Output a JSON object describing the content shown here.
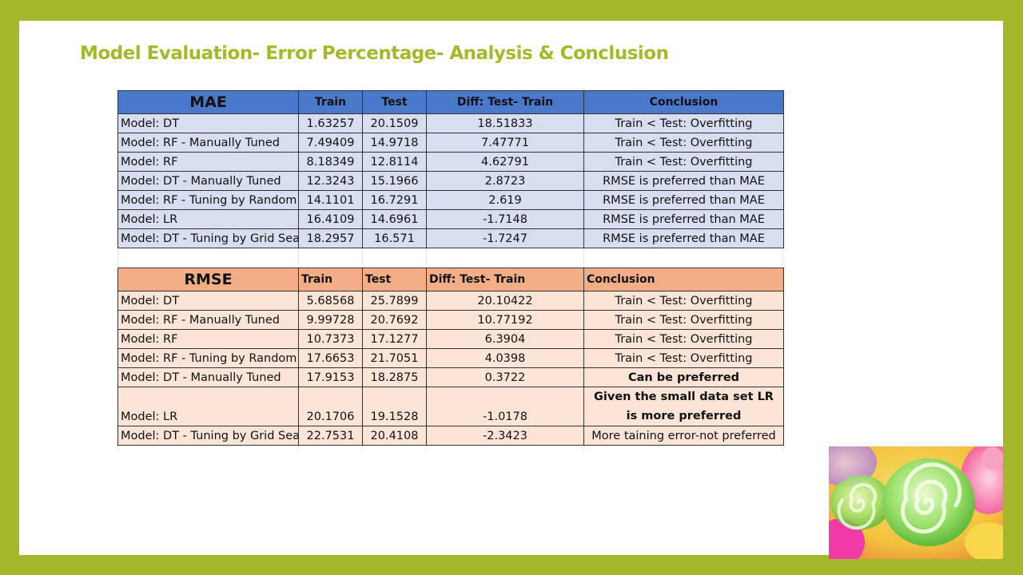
{
  "slide": {
    "title": "Model Evaluation- Error Percentage- Analysis & Conclusion"
  },
  "colors": {
    "frame": "#a5b82a",
    "mae_header": "#4a79cc",
    "mae_rows": "#d8deef",
    "rmse_header": "#f2ae86",
    "rmse_rows": "#fce4d6"
  },
  "mae": {
    "headers": [
      "MAE",
      "Train",
      "Test",
      "Diff: Test- Train",
      "Conclusion"
    ],
    "rows": [
      [
        "Model: DT",
        "1.63257",
        "20.1509",
        "18.51833",
        "Train < Test: Overfitting"
      ],
      [
        "Model: RF - Manually Tuned",
        "7.49409",
        "14.9718",
        "7.47771",
        "Train < Test: Overfitting"
      ],
      [
        "Model: RF",
        "8.18349",
        "12.8114",
        "4.62791",
        "Train < Test: Overfitting"
      ],
      [
        "Model: DT - Manually Tuned",
        "12.3243",
        "15.1966",
        "2.8723",
        "RMSE is preferred than MAE"
      ],
      [
        "Model: RF - Tuning by Random",
        "14.1101",
        "16.7291",
        "2.619",
        "RMSE is preferred than MAE"
      ],
      [
        "Model: LR",
        "16.4109",
        "14.6961",
        "-1.7148",
        "RMSE is preferred than MAE"
      ],
      [
        "Model: DT - Tuning by Grid Sea",
        "18.2957",
        "16.571",
        "-1.7247",
        "RMSE is preferred than MAE"
      ]
    ]
  },
  "rmse": {
    "headers": [
      "RMSE",
      "Train",
      "Test",
      "Diff: Test- Train",
      "Conclusion"
    ],
    "rows": [
      [
        "Model: DT",
        "5.68568",
        "25.7899",
        "20.10422",
        "Train < Test: Overfitting"
      ],
      [
        "Model: RF - Manually Tuned",
        "9.99728",
        "20.7692",
        "10.77192",
        "Train < Test: Overfitting"
      ],
      [
        "Model: RF",
        "10.7373",
        "17.1277",
        "6.3904",
        "Train < Test: Overfitting"
      ],
      [
        "Model: RF - Tuning by Random",
        "17.6653",
        "21.7051",
        "4.0398",
        "Train < Test: Overfitting"
      ],
      [
        "Model: DT - Manually Tuned",
        "17.9153",
        "18.2875",
        "0.3722",
        "Can be preferred"
      ],
      [
        "Model: LR",
        "20.1706",
        "19.1528",
        "-1.0178",
        "Given the small data set LR is more preferred"
      ],
      [
        "Model: DT - Tuning by Grid Sea",
        "22.7531",
        "20.4108",
        "-2.3423",
        "More taining error-not preferred"
      ]
    ]
  },
  "icons": {
    "decor_image": "candy-swirl-photo"
  }
}
